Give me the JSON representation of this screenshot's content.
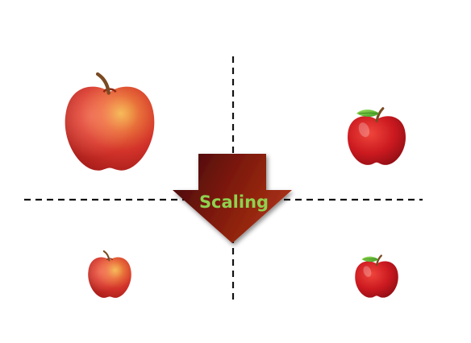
{
  "diagram": {
    "arrow_label": "Scaling"
  },
  "colors": {
    "background": "#ffffff",
    "divider": "#111111",
    "arrow_dark": "#4a0a05",
    "arrow_light": "#9e2a12",
    "label": "#8fd14f",
    "realistic_apple_main": "#d63a2a",
    "realistic_apple_highlight": "#f2c14a",
    "cartoon_apple_main": "#c8141c",
    "leaf": "#5cb82e",
    "stem": "#7a4a22"
  },
  "quadrants": [
    {
      "name": "top-left",
      "icon": "realistic-apple-large"
    },
    {
      "name": "top-right",
      "icon": "cartoon-apple-medium"
    },
    {
      "name": "bottom-left",
      "icon": "realistic-apple-small"
    },
    {
      "name": "bottom-right",
      "icon": "cartoon-apple-small"
    }
  ]
}
